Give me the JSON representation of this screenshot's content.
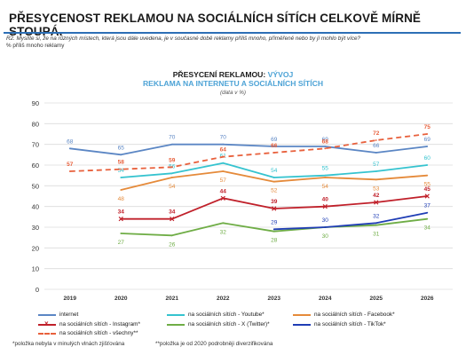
{
  "header": {
    "title": "PŘESYCENOST REKLAMOU NA SOCIÁLNÍCH SÍTÍCH CELKOVĚ MÍRNĚ STOUPÁ.",
    "question": "R2. Myslíte si, že na různých místech, která jsou dále uvedena, je v současné době reklamy příliš mnoho, přiměřeně nebo by jí mohlo být více?",
    "measure": "% příliš mnoho reklamy"
  },
  "chart_data": {
    "type": "line",
    "title_part1": "PŘESYCENÍ REKLAMOU: ",
    "title_part2": "VÝVOJ",
    "subtitle": "REKLAMA NA INTERNETU A SOCIÁLNÍCH SÍTÍCH",
    "unit_note": "(data v %)",
    "x": [
      "2019",
      "2020",
      "2021",
      "2022",
      "2023",
      "2024",
      "2025",
      "2026"
    ],
    "yticks": [
      "0",
      "10",
      "20",
      "30",
      "40",
      "50",
      "60",
      "70",
      "80",
      "90"
    ],
    "ylim": [
      0,
      90
    ],
    "grid": true,
    "legend_position": "bottom",
    "series": [
      {
        "name": "internet",
        "color": "#5b86c4",
        "dash": false,
        "marker": "none",
        "labelPos": "above",
        "values": [
          68,
          65,
          70,
          70,
          69,
          69,
          66,
          69
        ]
      },
      {
        "name": "na sociálních sítích - Youtube*",
        "color": "#35c3cf",
        "dash": false,
        "marker": "none",
        "labelPos": "above",
        "values": [
          null,
          54,
          56,
          61,
          54,
          55,
          57,
          60
        ]
      },
      {
        "name": "na sociálních sítích - Facebook*",
        "color": "#e58a3a",
        "dash": false,
        "marker": "none",
        "labelPos": "below",
        "values": [
          null,
          48,
          54,
          57,
          52,
          54,
          53,
          55
        ]
      },
      {
        "name": "na sociálních sítích - Instagram*",
        "color": "#c0202a",
        "dash": false,
        "marker": "cross",
        "labelPos": "above",
        "values": [
          null,
          34,
          34,
          44,
          39,
          40,
          42,
          45
        ]
      },
      {
        "name": "na sociálních sítích - X (Twitter)*",
        "color": "#6fad46",
        "dash": false,
        "marker": "none",
        "labelPos": "below",
        "values": [
          null,
          27,
          26,
          32,
          28,
          30,
          31,
          34
        ]
      },
      {
        "name": "na sociálních sítích - TikTok*",
        "color": "#1f3db5",
        "dash": false,
        "marker": "none",
        "labelPos": "above",
        "values": [
          null,
          null,
          null,
          null,
          29,
          30,
          32,
          37
        ]
      },
      {
        "name": "na sociálních sítích - všechny**",
        "color": "#e8603c",
        "dash": true,
        "marker": "none",
        "labelPos": "above",
        "values": [
          57,
          58,
          59,
          64,
          66,
          68,
          72,
          75
        ]
      }
    ]
  },
  "footnotes": {
    "note1": "*položka nebyla v minulých vlnách zjišťována",
    "note2": "**položka je od 2020 podrobněji diverzifikována"
  }
}
